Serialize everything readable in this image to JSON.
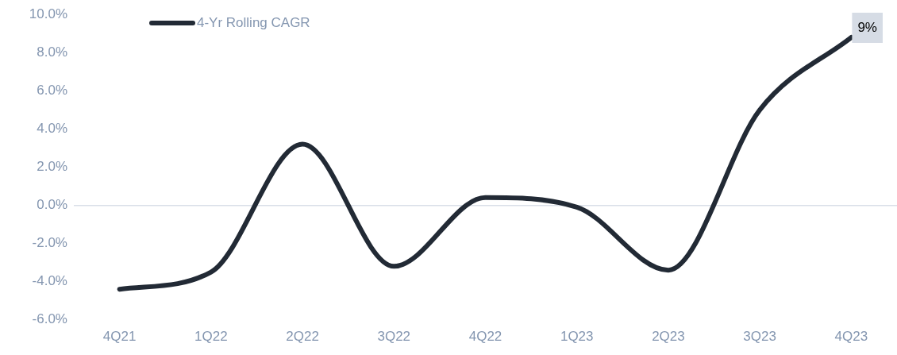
{
  "chart_data": {
    "type": "line",
    "categories": [
      "4Q21",
      "1Q22",
      "2Q22",
      "3Q22",
      "4Q22",
      "1Q23",
      "2Q23",
      "3Q23",
      "4Q23"
    ],
    "series": [
      {
        "name": "4-Yr Rolling CAGR",
        "color": "#222a35",
        "values": [
          -4.4,
          -3.5,
          3.2,
          -3.2,
          0.4,
          -0.1,
          -3.4,
          5.0,
          8.8
        ],
        "value_labels": [
          null,
          null,
          null,
          null,
          null,
          null,
          null,
          null,
          "9%"
        ]
      }
    ],
    "ylim": [
      -6,
      10
    ],
    "yticks": [
      {
        "value": -6,
        "label": "-6.0%"
      },
      {
        "value": -4,
        "label": "-4.0%"
      },
      {
        "value": -2,
        "label": "-2.0%"
      },
      {
        "value": 0,
        "label": "0.0%"
      },
      {
        "value": 2,
        "label": "2.0%"
      },
      {
        "value": 4,
        "label": "4.0%"
      },
      {
        "value": 6,
        "label": "6.0%"
      },
      {
        "value": 8,
        "label": "8.0%"
      },
      {
        "value": 10,
        "label": "10.0%"
      }
    ],
    "legend": "top left",
    "marker": "none",
    "line_style": "solid"
  }
}
